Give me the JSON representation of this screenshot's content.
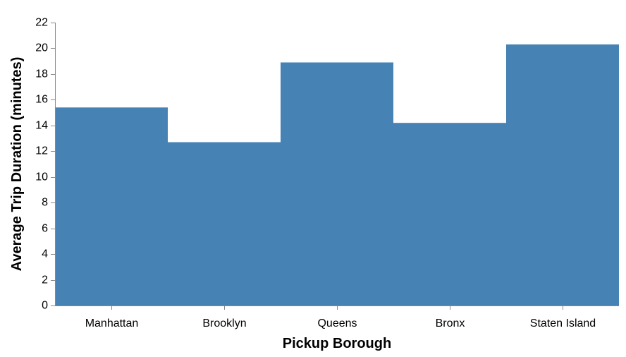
{
  "chart_data": {
    "type": "bar",
    "categories": [
      "Manhattan",
      "Brooklyn",
      "Queens",
      "Bronx",
      "Staten Island"
    ],
    "values": [
      15.4,
      12.7,
      18.9,
      14.2,
      20.3
    ],
    "title": "",
    "xlabel": "Pickup Borough",
    "ylabel": "Average Trip Duration (minutes)",
    "ylim": [
      0,
      22
    ],
    "yticks": [
      0,
      2,
      4,
      6,
      8,
      10,
      12,
      14,
      16,
      18,
      20,
      22
    ],
    "grid": false,
    "bar_color": "#4682b4",
    "axis_color": "#888888"
  }
}
